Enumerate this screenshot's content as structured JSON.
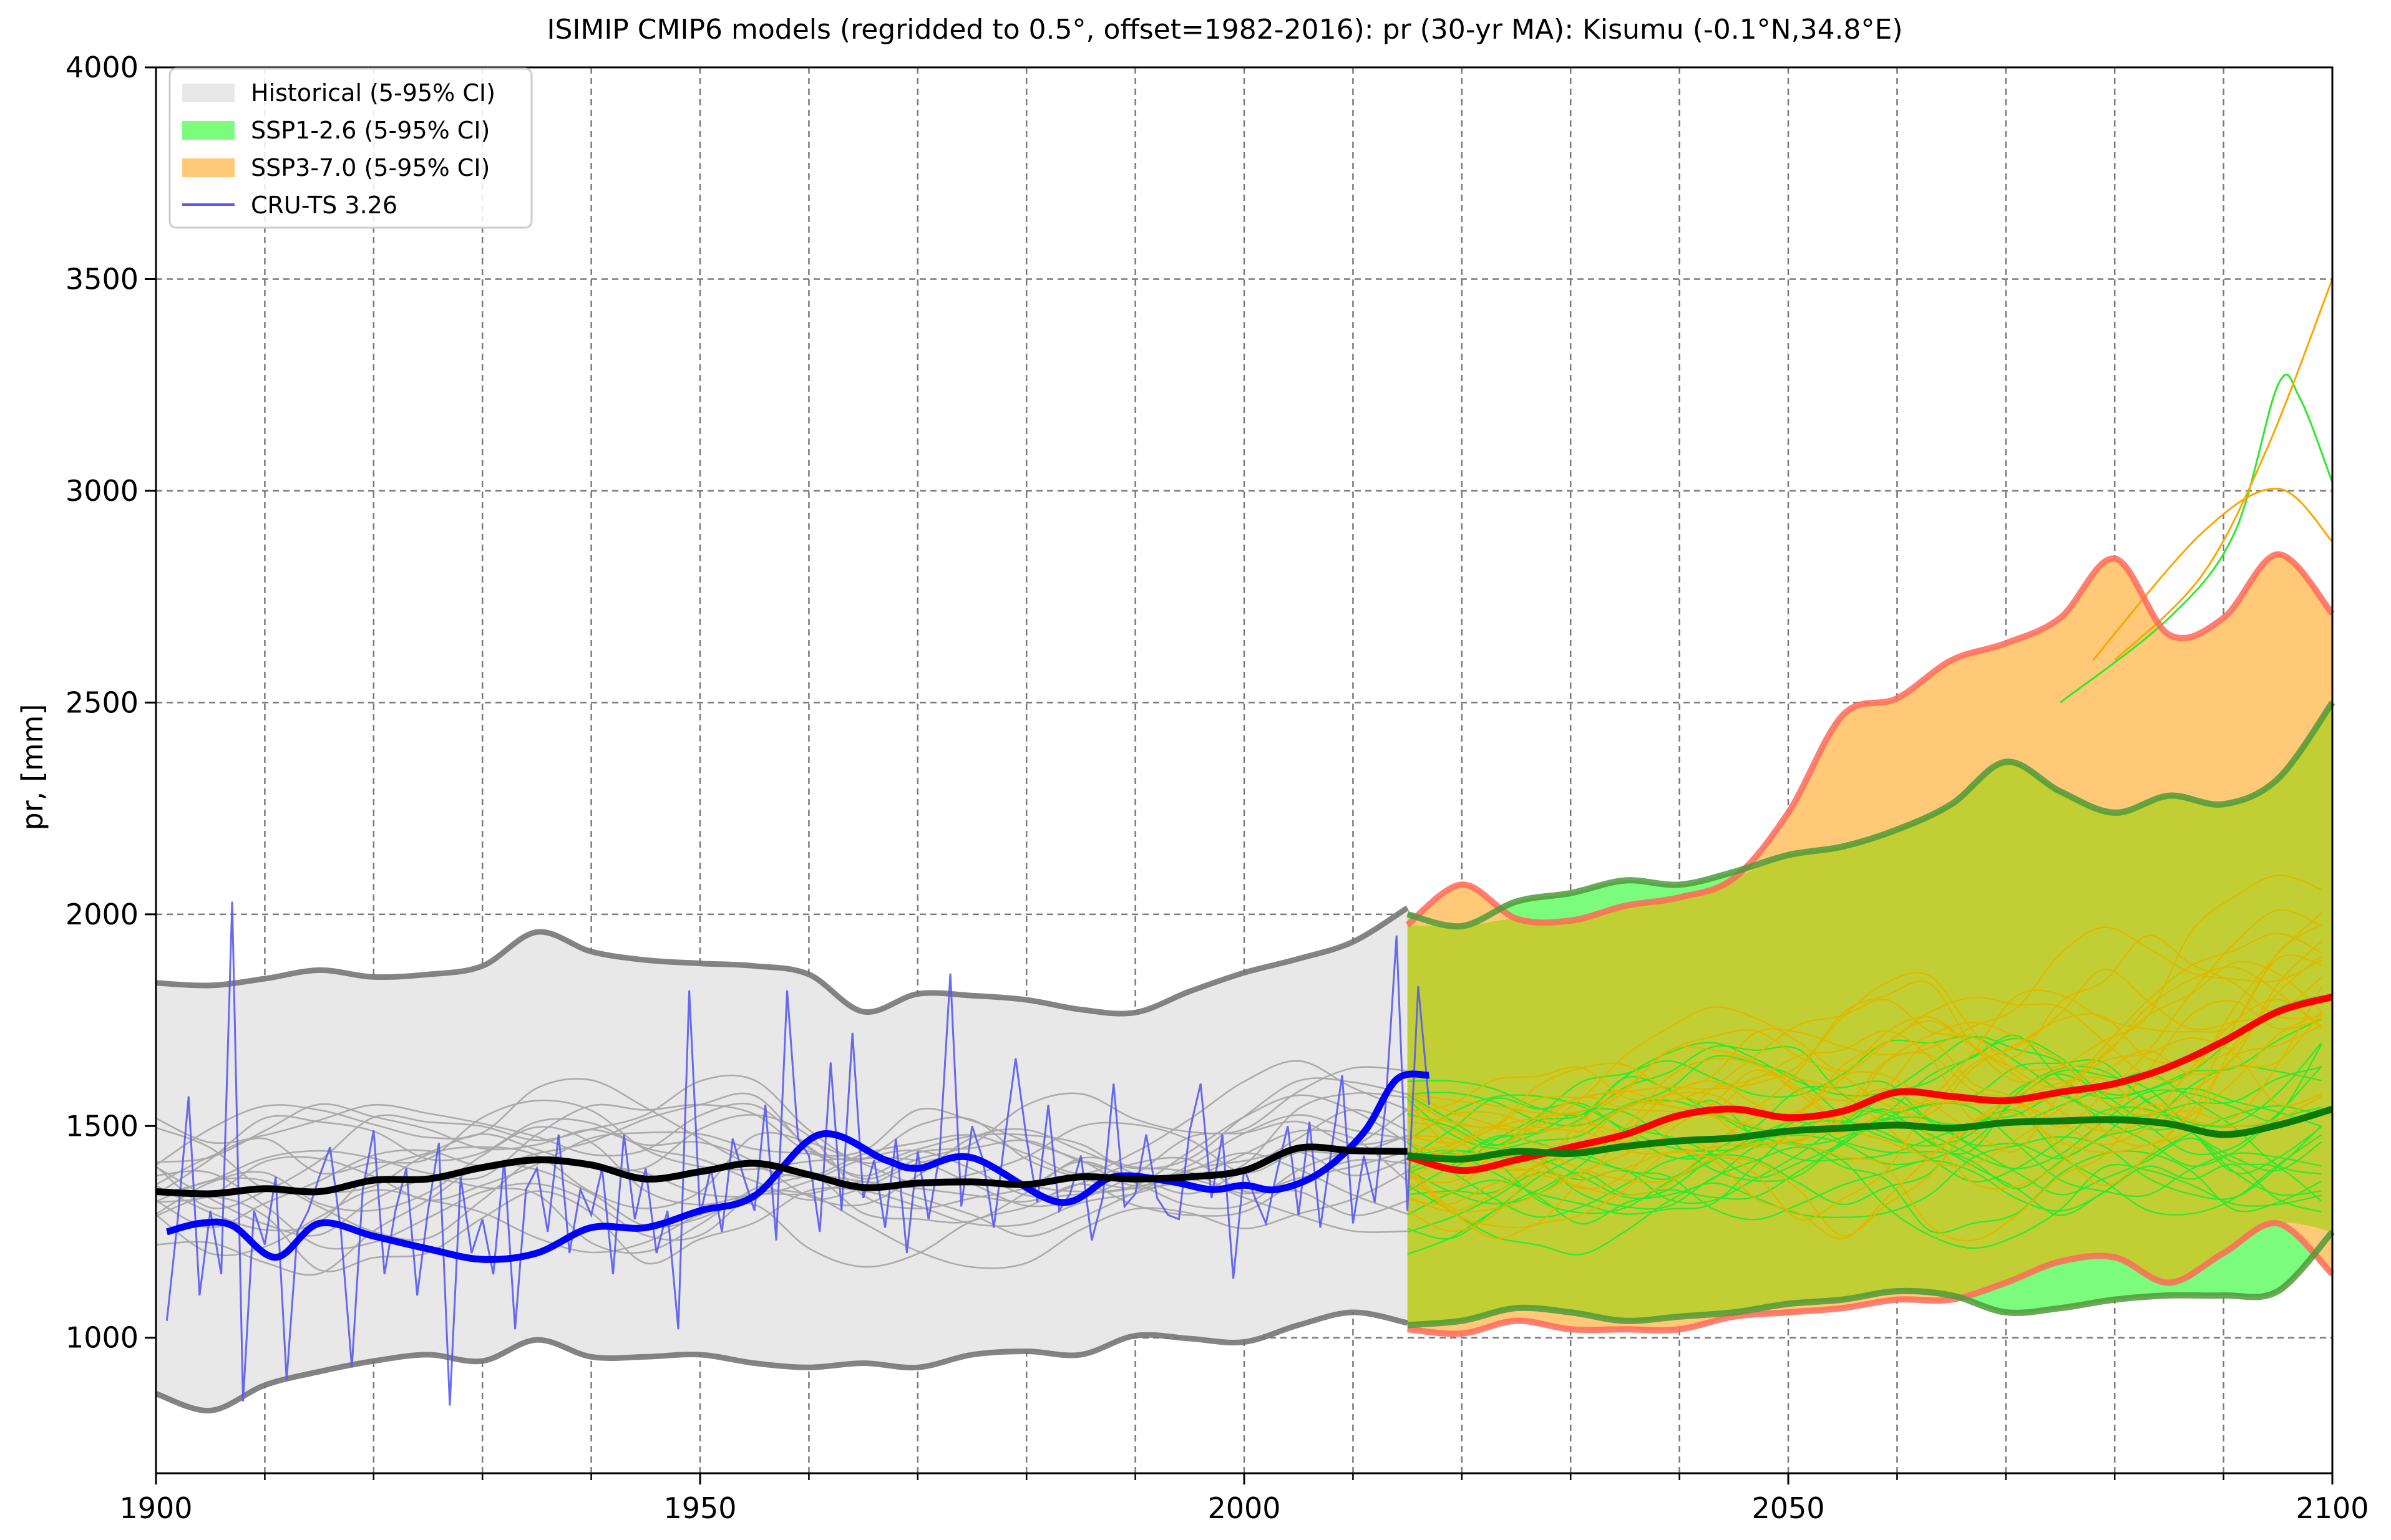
{
  "chart_data": {
    "type": "line",
    "title": "ISIMIP CMIP6 models (regridded to 0.5°, offset=1982-2016): pr (30-yr MA): Kisumu (-0.1°N,34.8°E)",
    "xlabel": "",
    "ylabel": "pr, [mm]",
    "xlim": [
      1900,
      2100
    ],
    "ylim": [
      680,
      4000
    ],
    "x_ticks": [
      1900,
      1950,
      2000,
      2050,
      2100
    ],
    "x_minor_ticks": [
      1910,
      1920,
      1930,
      1940,
      1960,
      1970,
      1980,
      1990,
      2010,
      2020,
      2030,
      2040,
      2060,
      2070,
      2080,
      2090
    ],
    "y_ticks": [
      1000,
      1500,
      2000,
      2500,
      3000,
      3500,
      4000
    ],
    "grid": true,
    "legend_position": "top-left",
    "legend": [
      {
        "label": "Historical (5-95% CI)",
        "kind": "patch",
        "color": "#e8e8e8"
      },
      {
        "label": "SSP1-2.6 (5-95% CI)",
        "kind": "patch",
        "color": "#7cfc7c"
      },
      {
        "label": "SSP3-7.0 (5-95% CI)",
        "kind": "patch",
        "color": "#ffc978"
      },
      {
        "label": "CRU-TS 3.26",
        "kind": "line",
        "color": "#5a5af0"
      }
    ],
    "colors": {
      "historical_band": "#e8e8e8",
      "historical_edge": "#6e6e6e",
      "historical_member": "#a8a8a8",
      "historical_mean": "#000000",
      "ssp126_band": "#7cfc7c",
      "ssp126_edge": "#4f9a3a",
      "ssp126_mean": "#0a7a0a",
      "ssp126_member": "#2ee82e",
      "ssp370_band": "#ffc978",
      "ssp370_edge": "#ff6a5a",
      "ssp370_mean": "#ff0000",
      "ssp370_member": "#ffa500",
      "overlap": "#c2cf34",
      "cru_annual": "#5a5af0",
      "cru_smooth": "#0000ff"
    },
    "historical": {
      "years": [
        1900,
        1905,
        1910,
        1915,
        1920,
        1925,
        1930,
        1935,
        1940,
        1945,
        1950,
        1955,
        1960,
        1965,
        1970,
        1975,
        1980,
        1985,
        1990,
        1995,
        2000,
        2005,
        2010,
        2015
      ],
      "upper": [
        1838,
        1832,
        1848,
        1868,
        1852,
        1858,
        1878,
        1958,
        1912,
        1892,
        1884,
        1878,
        1858,
        1770,
        1812,
        1808,
        1798,
        1775,
        1768,
        1818,
        1862,
        1895,
        1935,
        2015
      ],
      "lower": [
        868,
        828,
        888,
        920,
        945,
        960,
        945,
        995,
        955,
        955,
        960,
        940,
        930,
        940,
        930,
        960,
        968,
        960,
        1005,
        998,
        990,
        1030,
        1060,
        1035
      ],
      "mean": [
        1345,
        1340,
        1352,
        1345,
        1372,
        1375,
        1402,
        1420,
        1408,
        1375,
        1392,
        1412,
        1385,
        1355,
        1365,
        1368,
        1362,
        1380,
        1375,
        1380,
        1395,
        1448,
        1442,
        1440
      ]
    },
    "ssp126": {
      "years": [
        2015,
        2020,
        2025,
        2030,
        2035,
        2040,
        2045,
        2050,
        2055,
        2060,
        2065,
        2070,
        2075,
        2080,
        2085,
        2090,
        2095,
        2100
      ],
      "upper": [
        2000,
        1972,
        2030,
        2050,
        2080,
        2070,
        2100,
        2140,
        2160,
        2200,
        2260,
        2360,
        2290,
        2240,
        2280,
        2260,
        2320,
        2500
      ],
      "lower": [
        1030,
        1040,
        1070,
        1060,
        1040,
        1050,
        1060,
        1080,
        1090,
        1110,
        1100,
        1060,
        1070,
        1090,
        1100,
        1100,
        1110,
        1250
      ],
      "mean": [
        1430,
        1422,
        1440,
        1435,
        1452,
        1465,
        1472,
        1488,
        1495,
        1502,
        1495,
        1508,
        1512,
        1515,
        1505,
        1480,
        1502,
        1540
      ]
    },
    "ssp370": {
      "years": [
        2015,
        2020,
        2025,
        2030,
        2035,
        2040,
        2045,
        2050,
        2055,
        2060,
        2065,
        2070,
        2075,
        2080,
        2085,
        2090,
        2095,
        2100
      ],
      "upper": [
        1975,
        2070,
        1990,
        1985,
        2020,
        2040,
        2085,
        2240,
        2470,
        2510,
        2600,
        2640,
        2700,
        2840,
        2660,
        2700,
        2850,
        2710
      ],
      "lower": [
        1020,
        1010,
        1040,
        1020,
        1020,
        1020,
        1050,
        1060,
        1070,
        1090,
        1090,
        1130,
        1180,
        1190,
        1130,
        1200,
        1270,
        1150
      ],
      "mean": [
        1428,
        1395,
        1420,
        1450,
        1480,
        1525,
        1540,
        1520,
        1535,
        1580,
        1570,
        1560,
        1580,
        1600,
        1640,
        1700,
        1770,
        1805
      ]
    },
    "cru_ts": {
      "name": "CRU-TS 3.26",
      "years": [
        1901,
        1902,
        1903,
        1904,
        1905,
        1906,
        1907,
        1908,
        1909,
        1910,
        1911,
        1912,
        1913,
        1914,
        1915,
        1916,
        1917,
        1918,
        1919,
        1920,
        1921,
        1922,
        1923,
        1924,
        1925,
        1926,
        1927,
        1928,
        1929,
        1930,
        1931,
        1932,
        1933,
        1934,
        1935,
        1936,
        1937,
        1938,
        1939,
        1940,
        1941,
        1942,
        1943,
        1944,
        1945,
        1946,
        1947,
        1948,
        1949,
        1950,
        1951,
        1952,
        1953,
        1954,
        1955,
        1956,
        1957,
        1958,
        1959,
        1960,
        1961,
        1962,
        1963,
        1964,
        1965,
        1966,
        1967,
        1968,
        1969,
        1970,
        1971,
        1972,
        1973,
        1974,
        1975,
        1976,
        1977,
        1978,
        1979,
        1980,
        1981,
        1982,
        1983,
        1984,
        1985,
        1986,
        1987,
        1988,
        1989,
        1990,
        1991,
        1992,
        1993,
        1994,
        1995,
        1996,
        1997,
        1998,
        1999,
        2000,
        2001,
        2002,
        2003,
        2004,
        2005,
        2006,
        2007,
        2008,
        2009,
        2010,
        2011,
        2012,
        2013,
        2014,
        2015,
        2016,
        2017
      ],
      "values": [
        1040,
        1280,
        1570,
        1100,
        1300,
        1150,
        2030,
        850,
        1300,
        1220,
        1380,
        900,
        1250,
        1300,
        1380,
        1450,
        1250,
        930,
        1350,
        1490,
        1150,
        1300,
        1400,
        1100,
        1300,
        1460,
        840,
        1380,
        1200,
        1280,
        1150,
        1420,
        1020,
        1350,
        1400,
        1250,
        1480,
        1200,
        1350,
        1290,
        1400,
        1150,
        1480,
        1280,
        1400,
        1200,
        1300,
        1020,
        1820,
        1290,
        1400,
        1250,
        1470,
        1380,
        1300,
        1550,
        1230,
        1820,
        1470,
        1430,
        1250,
        1650,
        1300,
        1720,
        1330,
        1420,
        1260,
        1470,
        1200,
        1440,
        1280,
        1430,
        1860,
        1310,
        1500,
        1420,
        1260,
        1470,
        1660,
        1470,
        1320,
        1550,
        1300,
        1340,
        1430,
        1230,
        1330,
        1600,
        1310,
        1340,
        1480,
        1330,
        1290,
        1280,
        1490,
        1600,
        1330,
        1480,
        1140,
        1400,
        1330,
        1270,
        1390,
        1500,
        1290,
        1510,
        1260,
        1440,
        1620,
        1270,
        1430,
        1320,
        1550,
        1950,
        1300,
        1830,
        1550
      ],
      "smooth": [
        1250,
        1270,
        1265,
        1190,
        1270,
        1240,
        1210,
        1185,
        1200,
        1260,
        1260,
        1300,
        1335,
        1480,
        1420,
        1400,
        1425,
        1320,
        1380,
        1370,
        1350,
        1360,
        1350,
        1390,
        1485,
        1610,
        1620
      ]
    },
    "cru_smooth_years": [
      1901,
      1904,
      1907,
      1911,
      1915,
      1920,
      1925,
      1930,
      1935,
      1940,
      1945,
      1950,
      1955,
      1961,
      1967,
      1970,
      1975,
      1983,
      1988,
      1993,
      1997,
      2000,
      2003,
      2007,
      2011,
      2014,
      2017
    ]
  }
}
